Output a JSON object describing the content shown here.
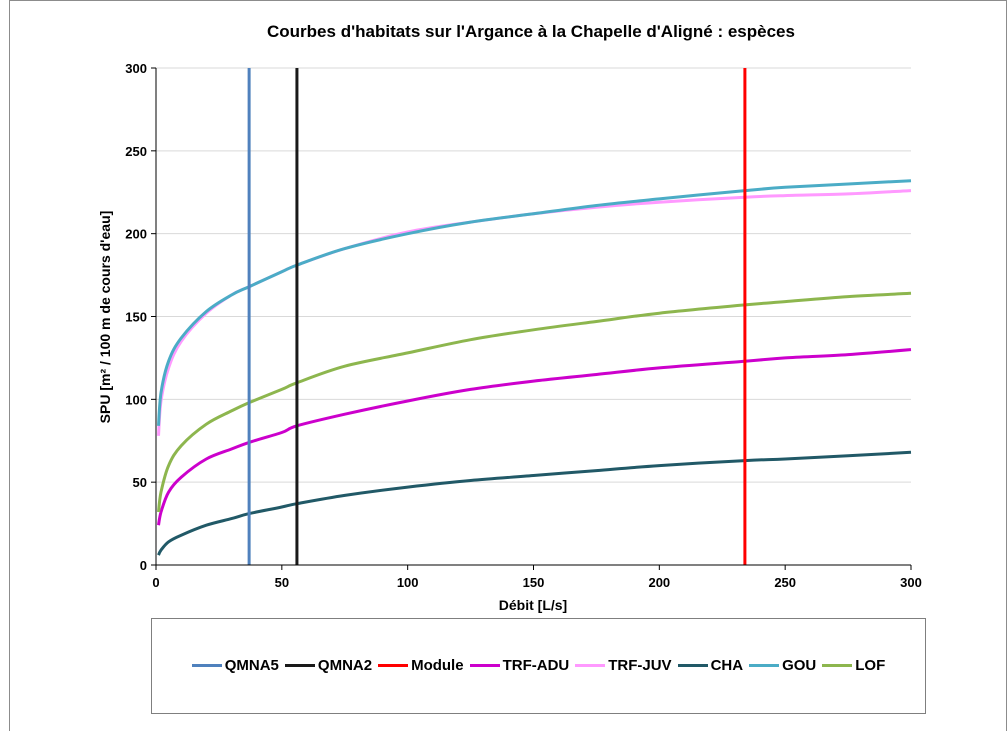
{
  "chart_data": {
    "type": "line",
    "title": "Courbes d'habitats sur l'Argance à la Chapelle d'Aligné : espèces",
    "xlabel": "Débit  [L/s]",
    "ylabel": "SPU [m² / 100 m de cours d'eau]",
    "xlim": [
      0,
      300
    ],
    "ylim": [
      0,
      300
    ],
    "x_ticks": [
      "0",
      "50",
      "100",
      "150",
      "200",
      "250",
      "300"
    ],
    "y_ticks": [
      "0",
      "50",
      "100",
      "150",
      "200",
      "250",
      "300"
    ],
    "grid": "horizontal",
    "legend_position": "bottom",
    "vertical_lines": [
      {
        "name": "QMNA5",
        "x": 37,
        "color": "#4f81bd"
      },
      {
        "name": "QMNA2",
        "x": 56,
        "color": "#1a1a1a"
      },
      {
        "name": "Module",
        "x": 234,
        "color": "#ff0000"
      }
    ],
    "x": [
      1,
      2,
      5,
      10,
      20,
      30,
      37,
      50,
      56,
      75,
      100,
      125,
      150,
      175,
      200,
      234,
      250,
      275,
      300
    ],
    "series": [
      {
        "name": "TRF-ADU",
        "color": "#cc00cc",
        "values": [
          24,
          32,
          44,
          53,
          64,
          70,
          74,
          80,
          84,
          91,
          99,
          106,
          111,
          115,
          119,
          123,
          125,
          127,
          130
        ]
      },
      {
        "name": "TRF-JUV",
        "color": "#ff99ff",
        "values": [
          78,
          99,
          119,
          135,
          152,
          163,
          168,
          177,
          181,
          191,
          201,
          207,
          212,
          216,
          219,
          222,
          223,
          224,
          226
        ]
      },
      {
        "name": "CHA",
        "color": "#215967",
        "values": [
          6,
          9,
          14,
          18,
          24,
          28,
          31,
          35,
          37,
          42,
          47,
          51,
          54,
          57,
          60,
          63,
          64,
          66,
          68
        ]
      },
      {
        "name": "GOU",
        "color": "#4bacc6",
        "values": [
          84,
          104,
          123,
          137,
          153,
          163,
          168,
          177,
          181,
          191,
          200,
          207,
          212,
          217,
          221,
          226,
          228,
          230,
          232
        ]
      },
      {
        "name": "LOF",
        "color": "#8db64e",
        "values": [
          32,
          44,
          60,
          72,
          85,
          93,
          98,
          106,
          110,
          120,
          128,
          136,
          142,
          147,
          152,
          157,
          159,
          162,
          164
        ]
      }
    ],
    "legend": [
      "QMNA5",
      "QMNA2",
      "Module",
      "TRF-ADU",
      "TRF-JUV",
      "CHA",
      "GOU",
      "LOF"
    ]
  }
}
